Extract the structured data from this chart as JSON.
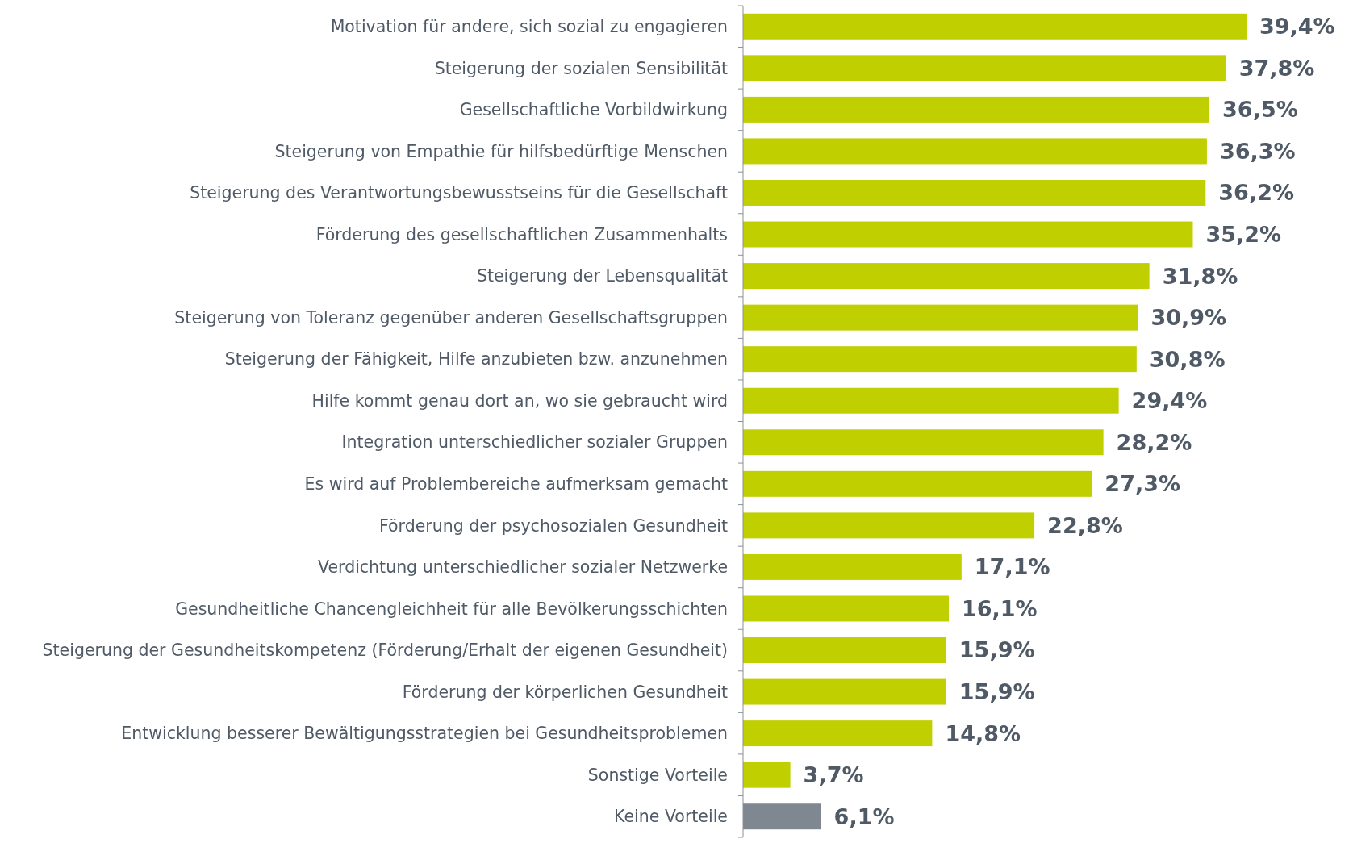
{
  "chart_data": {
    "type": "bar",
    "orientation": "horizontal",
    "categories": [
      "Motivation für andere, sich sozial zu engagieren",
      "Steigerung der sozialen Sensibilität",
      "Gesellschaftliche Vorbildwirkung",
      "Steigerung von Empathie für hilfsbedürftige Menschen",
      "Steigerung des Verantwortungsbewusstseins für die Gesellschaft",
      "Förderung des gesellschaftlichen Zusammenhalts",
      "Steigerung der Lebensqualität",
      "Steigerung von Toleranz gegenüber anderen Gesellschaftsgruppen",
      "Steigerung der Fähigkeit, Hilfe anzubieten bzw. anzunehmen",
      "Hilfe kommt genau dort an, wo sie gebraucht wird",
      "Integration unterschiedlicher sozialer Gruppen",
      "Es wird auf Problembereiche aufmerksam gemacht",
      "Förderung der psychosozialen Gesundheit",
      "Verdichtung unterschiedlicher sozialer Netzwerke",
      "Gesundheitliche Chancengleichheit für alle Bevölkerungsschichten",
      "Steigerung der Gesundheitskompetenz (Förderung/Erhalt der eigenen Gesundheit)",
      "Förderung der körperlichen Gesundheit",
      "Entwicklung besserer Bewältigungsstrategien bei Gesundheitsproblemen",
      "Sonstige Vorteile",
      "Keine Vorteile"
    ],
    "values": [
      39.4,
      37.8,
      36.5,
      36.3,
      36.2,
      35.2,
      31.8,
      30.9,
      30.8,
      29.4,
      28.2,
      27.3,
      22.8,
      17.1,
      16.1,
      15.9,
      15.9,
      14.8,
      3.7,
      6.1
    ],
    "value_labels": [
      "39,4%",
      "37,8%",
      "36,5%",
      "36,3%",
      "36,2%",
      "35,2%",
      "31,8%",
      "30,9%",
      "30,8%",
      "29,4%",
      "28,2%",
      "27,3%",
      "22,8%",
      "17,1%",
      "16,1%",
      "15,9%",
      "15,9%",
      "14,8%",
      "3,7%",
      "6,1%"
    ],
    "colors": [
      "#bfcf00",
      "#bfcf00",
      "#bfcf00",
      "#bfcf00",
      "#bfcf00",
      "#bfcf00",
      "#bfcf00",
      "#bfcf00",
      "#bfcf00",
      "#bfcf00",
      "#bfcf00",
      "#bfcf00",
      "#bfcf00",
      "#bfcf00",
      "#bfcf00",
      "#bfcf00",
      "#bfcf00",
      "#bfcf00",
      "#bfcf00",
      "#7f8790"
    ],
    "tick_labels": "y"
  }
}
